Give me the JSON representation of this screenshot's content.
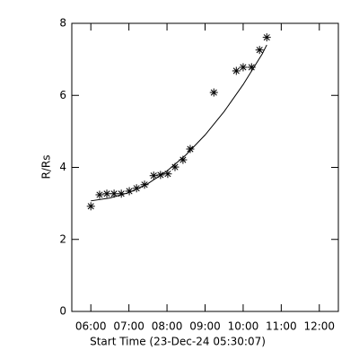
{
  "chart_data": {
    "type": "scatter",
    "x_label": "Start Time (23-Dec-24 05:30:07)",
    "y_label": "R/Rs",
    "xlim": [
      5.5,
      12.5
    ],
    "xticks": [
      {
        "value": 6,
        "label": "06:00"
      },
      {
        "value": 7,
        "label": "07:00"
      },
      {
        "value": 8,
        "label": "08:00"
      },
      {
        "value": 9,
        "label": "09:00"
      },
      {
        "value": 10,
        "label": "10:00"
      },
      {
        "value": 11,
        "label": "11:00"
      },
      {
        "value": 12,
        "label": "12:00"
      }
    ],
    "ylim": [
      0,
      8
    ],
    "yticks": [
      0,
      2,
      4,
      6,
      8
    ],
    "series": [
      {
        "marker": "asterisk",
        "color": "#000000",
        "x": [
          6.0,
          6.23,
          6.42,
          6.61,
          6.8,
          7.01,
          7.2,
          7.41,
          7.65,
          7.83,
          8.02,
          8.21,
          8.42,
          8.61,
          9.23,
          9.82,
          10.0,
          10.22,
          10.43,
          10.62
        ],
        "values": [
          2.92,
          3.24,
          3.27,
          3.27,
          3.27,
          3.34,
          3.42,
          3.52,
          3.77,
          3.79,
          3.82,
          4.01,
          4.21,
          4.51,
          6.08,
          6.68,
          6.78,
          6.78,
          7.26,
          7.61
        ]
      },
      {
        "marker": "line",
        "color": "#000000",
        "x": [
          6.0,
          6.5,
          7.0,
          7.5,
          8.0,
          8.5,
          9.0,
          9.5,
          10.0,
          10.5,
          10.62
        ],
        "values": [
          3.07,
          3.15,
          3.3,
          3.55,
          3.9,
          4.35,
          4.9,
          5.55,
          6.3,
          7.15,
          7.4
        ]
      }
    ]
  }
}
